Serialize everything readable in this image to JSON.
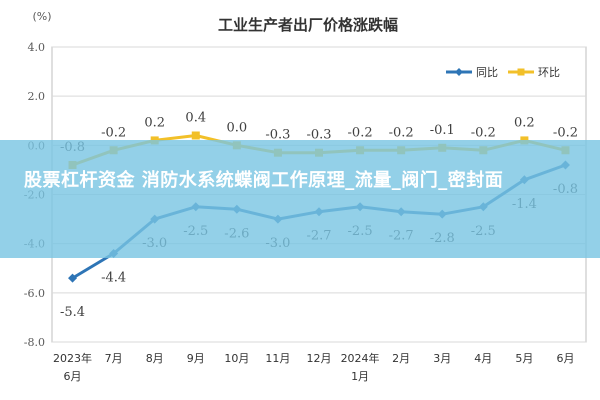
{
  "overlay": {
    "caption": "股票杠杆资金 消防水系统蝶阀工作原理_流量_阀门_密封面"
  },
  "chart_data": {
    "type": "line",
    "title": "工业生产者出厂价格涨跌幅",
    "ylabel": "(%)",
    "xlabel": "",
    "ylim": [
      -8.0,
      4.0
    ],
    "yticks": [
      "4.0",
      "2.0",
      "0.0",
      "-2.0",
      "-4.0",
      "-6.0",
      "-8.0"
    ],
    "yticks_values": [
      4,
      2,
      0,
      -2,
      -4,
      -6,
      -8
    ],
    "categories": [
      "2023年6月",
      "7月",
      "8月",
      "9月",
      "10月",
      "11月",
      "12月",
      "2024年1月",
      "2月",
      "3月",
      "4月",
      "5月",
      "6月"
    ],
    "series": [
      {
        "name": "同比",
        "color": "#2e75b6",
        "values": [
          -5.4,
          -4.4,
          -3.0,
          -2.5,
          -2.6,
          -3.0,
          -2.7,
          -2.5,
          -2.7,
          -2.8,
          -2.5,
          -1.4,
          -0.8
        ],
        "labels": [
          "-5.4",
          "-4.4",
          "-3.0",
          "-2.5",
          "-2.6",
          "-3.0",
          "-2.7",
          "-2.5",
          "-2.7",
          "-2.8",
          "-2.5",
          "-1.4",
          "-0.8"
        ]
      },
      {
        "name": "环比",
        "color": "#f2c029",
        "values": [
          -0.8,
          -0.2,
          0.2,
          0.4,
          0.0,
          -0.3,
          -0.3,
          -0.2,
          -0.2,
          -0.1,
          -0.2,
          0.2,
          -0.2
        ],
        "labels": [
          "-0.8",
          "-0.2",
          "0.2",
          "0.4",
          "0.0",
          "-0.3",
          "-0.3",
          "-0.2",
          "-0.2",
          "-0.1",
          "-0.2",
          "0.2",
          "-0.2"
        ]
      }
    ],
    "legend": "top-right",
    "grid": true
  }
}
